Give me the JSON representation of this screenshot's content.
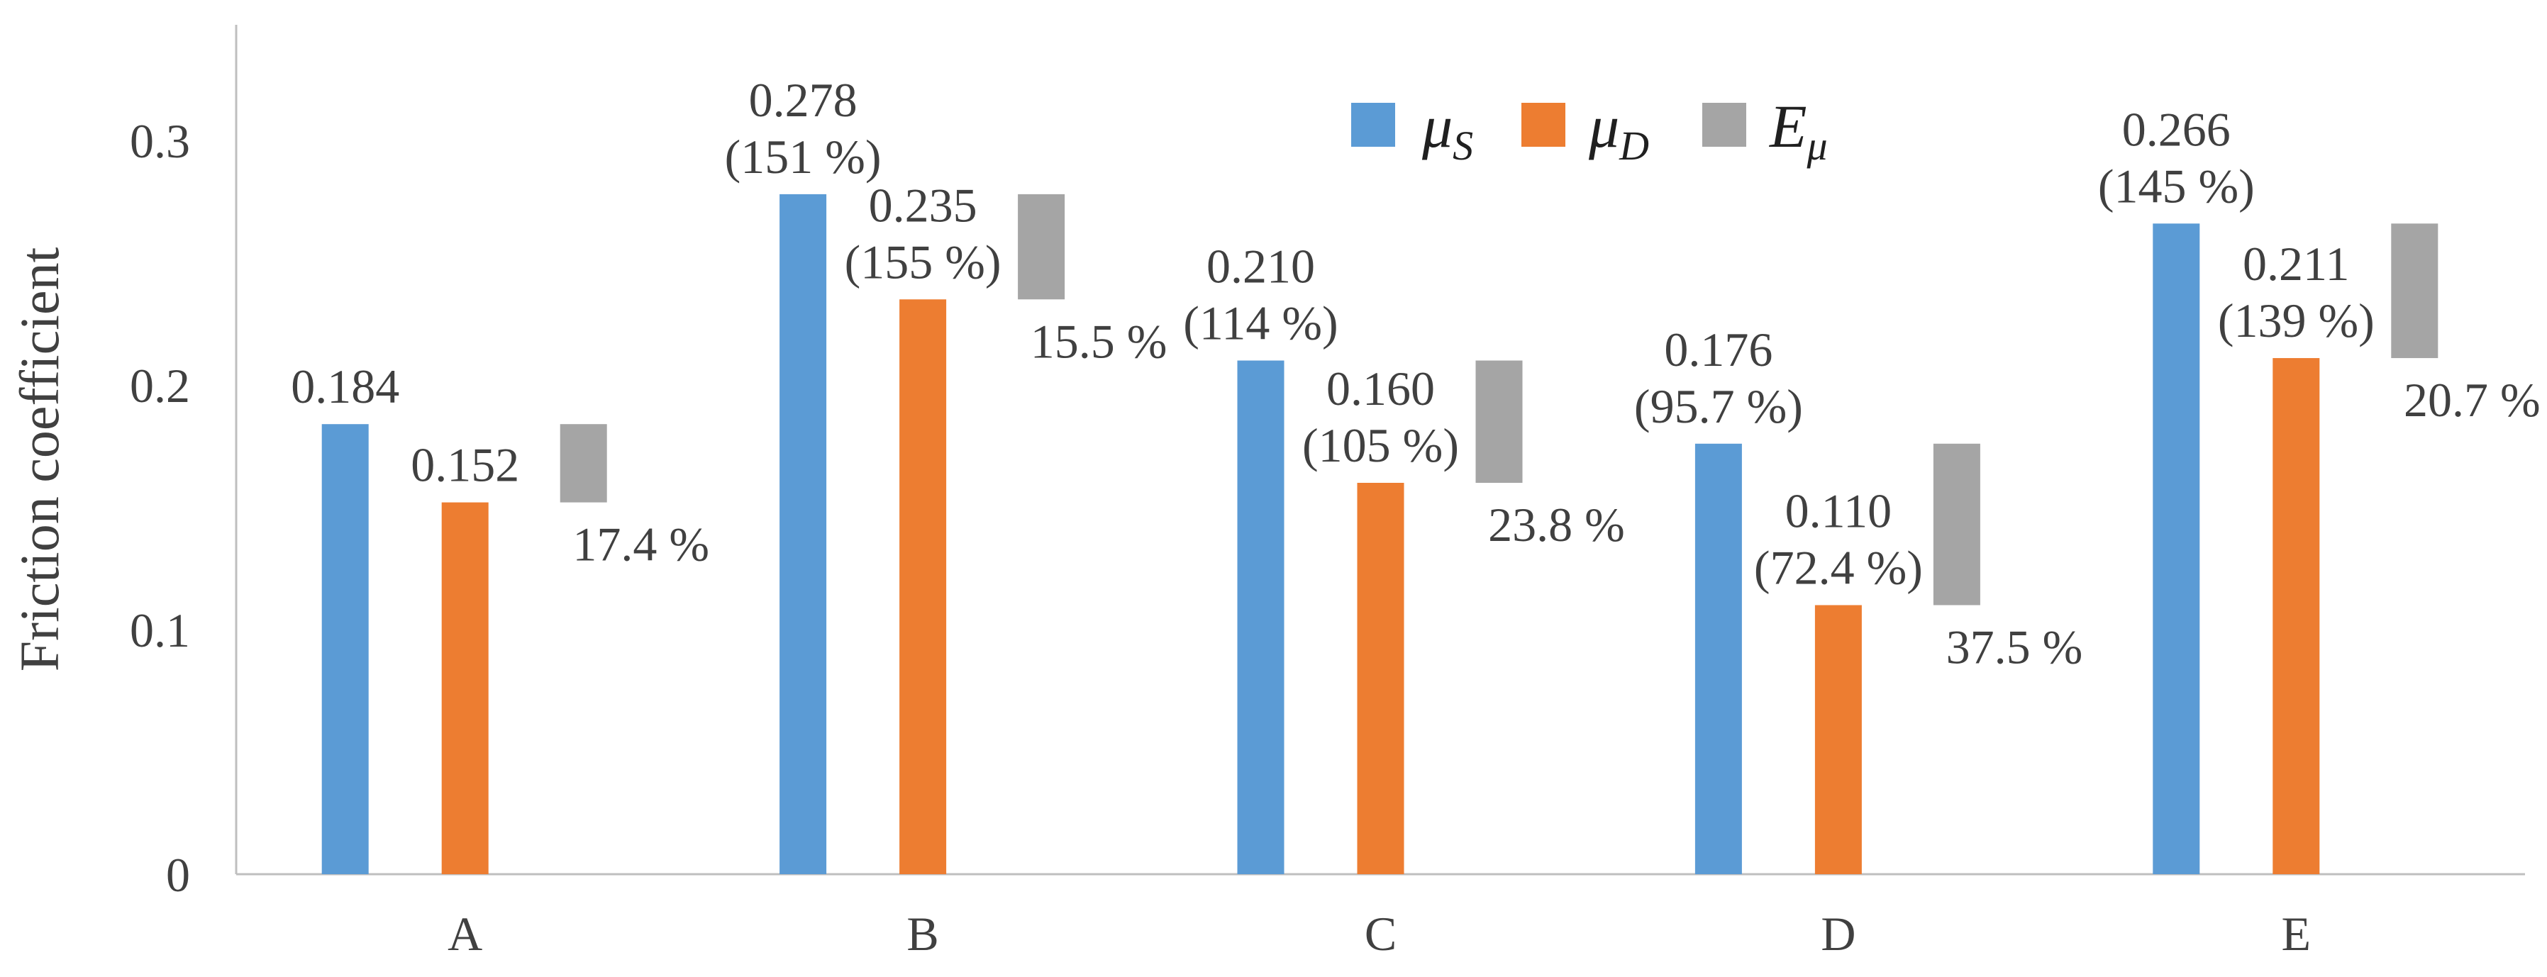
{
  "chart_data": {
    "type": "bar",
    "title": "",
    "xlabel": "",
    "ylabel": "Friction coefficient",
    "ylim": [
      0,
      0.35
    ],
    "yticks": [
      0,
      0.1,
      0.2,
      0.3
    ],
    "ytick_labels": [
      "0",
      "0.1",
      "0.2",
      "0.3"
    ],
    "grid": false,
    "legend_position": "top-center",
    "categories": [
      "A",
      "B",
      "C",
      "D",
      "E"
    ],
    "series": [
      {
        "name": "μS",
        "legend_main": "μ",
        "legend_sub": "S",
        "color": "#5b9bd5",
        "values": [
          0.184,
          0.278,
          0.21,
          0.176,
          0.266
        ],
        "labels": [
          "0.184",
          "0.278",
          "0.210",
          "0.176",
          "0.266"
        ],
        "sub_labels": [
          "",
          "(151 %)",
          "(114 %)",
          "(95.7 %)",
          "(145 %)"
        ]
      },
      {
        "name": "μD",
        "legend_main": "μ",
        "legend_sub": "D",
        "color": "#ed7d31",
        "values": [
          0.152,
          0.235,
          0.16,
          0.11,
          0.211
        ],
        "labels": [
          "0.152",
          "0.235",
          "0.160",
          "0.110",
          "0.211"
        ],
        "sub_labels": [
          "",
          "(155 %)",
          "(105 %)",
          "(72.4 %)",
          "(139 %)"
        ]
      },
      {
        "name": "Eμ",
        "legend_main": "E",
        "legend_sub": "μ",
        "color": "#a5a5a5",
        "kind": "floating-range",
        "values": [
          17.4,
          15.5,
          23.8,
          37.5,
          20.7
        ],
        "unit": "%",
        "labels": [
          "17.4 %",
          "15.5 %",
          "23.8 %",
          "37.5 %",
          "20.7 %"
        ]
      }
    ]
  }
}
